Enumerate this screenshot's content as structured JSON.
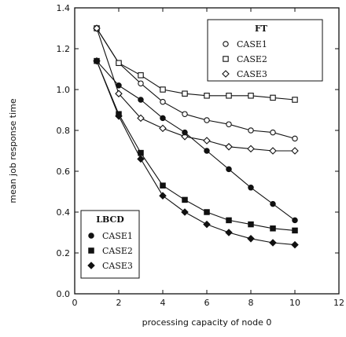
{
  "chart_data": {
    "type": "line",
    "xlabel": "processing capacity of node 0",
    "ylabel": "mean job response time",
    "xlim": [
      0,
      12
    ],
    "ylim": [
      0.0,
      1.4
    ],
    "x_ticks": [
      "0",
      "2",
      "4",
      "6",
      "8",
      "10",
      "12"
    ],
    "y_ticks": [
      "0.0",
      "0.2",
      "0.4",
      "0.6",
      "0.8",
      "1.0",
      "1.2",
      "1.4"
    ],
    "grid": false,
    "x": [
      1,
      2,
      3,
      4,
      5,
      6,
      7,
      8,
      9,
      10
    ],
    "legends": [
      {
        "title": "FT",
        "placement": "top-right",
        "entries": [
          "CASE1",
          "CASE2",
          "CASE3"
        ]
      },
      {
        "title": "LBCD",
        "placement": "bottom-left",
        "entries": [
          "CASE1",
          "CASE2",
          "CASE3"
        ]
      }
    ],
    "series": [
      {
        "name": "CASE1",
        "group": "FT",
        "marker": "open-circle",
        "values": [
          1.3,
          1.13,
          1.03,
          0.94,
          0.88,
          0.85,
          0.83,
          0.8,
          0.79,
          0.76
        ]
      },
      {
        "name": "CASE2",
        "group": "FT",
        "marker": "open-square",
        "values": [
          1.3,
          1.13,
          1.07,
          1.0,
          0.98,
          0.97,
          0.97,
          0.97,
          0.96,
          0.95
        ]
      },
      {
        "name": "CASE3",
        "group": "FT",
        "marker": "open-diamond",
        "values": [
          1.3,
          0.98,
          0.86,
          0.81,
          0.77,
          0.75,
          0.72,
          0.71,
          0.7,
          0.7
        ]
      },
      {
        "name": "CASE1",
        "group": "LBCD",
        "marker": "filled-circle",
        "values": [
          1.14,
          1.02,
          0.95,
          0.86,
          0.79,
          0.7,
          0.61,
          0.52,
          0.44,
          0.36
        ]
      },
      {
        "name": "CASE2",
        "group": "LBCD",
        "marker": "filled-square",
        "values": [
          1.14,
          0.88,
          0.69,
          0.53,
          0.46,
          0.4,
          0.36,
          0.34,
          0.32,
          0.31
        ]
      },
      {
        "name": "CASE3",
        "group": "LBCD",
        "marker": "filled-diamond",
        "values": [
          1.14,
          0.87,
          0.66,
          0.48,
          0.4,
          0.34,
          0.3,
          0.27,
          0.25,
          0.24
        ]
      }
    ]
  }
}
